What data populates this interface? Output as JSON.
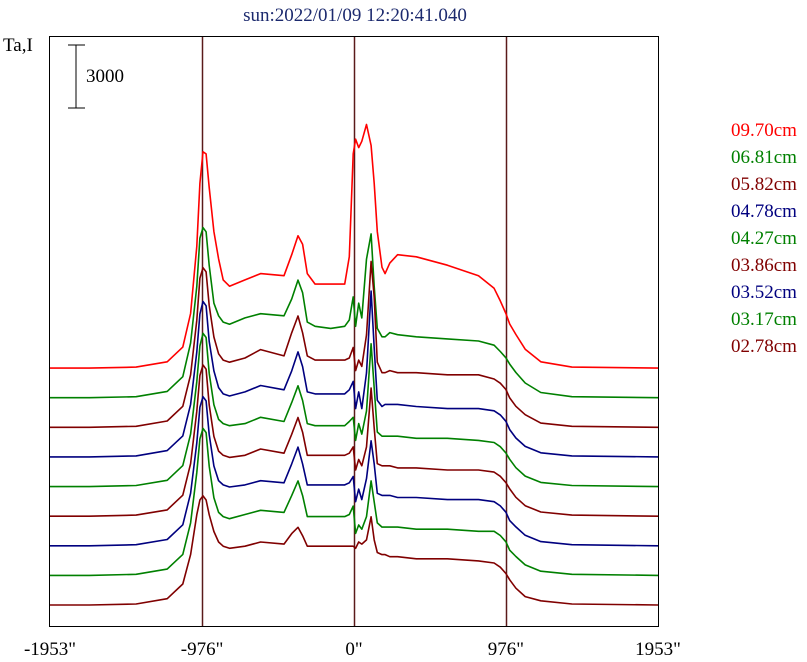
{
  "chart_data": {
    "type": "line",
    "title": "sun:2022/01/09 12:20:41.040",
    "ylabel": "Ta,I",
    "scale_bar_label": "3000",
    "scale_bar_value": 3000,
    "x_ticks": [
      {
        "value": -1953,
        "label": "-1953\""
      },
      {
        "value": -976,
        "label": "-976\""
      },
      {
        "value": 0,
        "label": "0\""
      },
      {
        "value": 976,
        "label": "976\""
      },
      {
        "value": 1953,
        "label": "1953\""
      }
    ],
    "xlim": [
      -1953,
      1953
    ],
    "vertical_lines": [
      -976,
      0,
      976
    ],
    "offset_step": 3000,
    "x": [
      -1953,
      -1700,
      -1400,
      -1200,
      -1100,
      -1050,
      -1010,
      -990,
      -970,
      -950,
      -930,
      -900,
      -870,
      -840,
      -800,
      -700,
      -600,
      -450,
      -400,
      -360,
      -330,
      -300,
      -250,
      -150,
      -60,
      -30,
      -5,
      10,
      30,
      50,
      80,
      110,
      130,
      150,
      180,
      200,
      230,
      280,
      400,
      600,
      800,
      900,
      940,
      976,
      1000,
      1040,
      1100,
      1200,
      1400,
      1953
    ],
    "series": [
      {
        "name": "09.70cm",
        "color": "#ff0000",
        "values": [
          0,
          0,
          50,
          300,
          1000,
          2600,
          5800,
          8800,
          10300,
          10200,
          8600,
          6500,
          5200,
          4200,
          3900,
          4200,
          4500,
          4400,
          5400,
          6300,
          5900,
          4500,
          4000,
          4000,
          4000,
          5300,
          10200,
          10900,
          10500,
          10800,
          11600,
          10600,
          8800,
          6500,
          4800,
          4500,
          5000,
          5400,
          5300,
          4900,
          4400,
          3800,
          3200,
          2600,
          2100,
          1600,
          900,
          300,
          50,
          0
        ]
      },
      {
        "name": "06.81cm",
        "color": "#008000",
        "values": [
          0,
          0,
          50,
          300,
          1000,
          2600,
          5300,
          7600,
          8100,
          7900,
          6300,
          4500,
          3900,
          3600,
          3500,
          3800,
          4000,
          3900,
          4700,
          5600,
          5000,
          3600,
          3400,
          3300,
          3400,
          3700,
          4800,
          3400,
          4500,
          3800,
          6600,
          7800,
          5300,
          3300,
          2900,
          2900,
          3100,
          3000,
          2900,
          2800,
          2700,
          2500,
          2200,
          1900,
          1600,
          1200,
          700,
          250,
          50,
          0
        ]
      },
      {
        "name": "05.82cm",
        "color": "#800000",
        "values": [
          0,
          0,
          50,
          300,
          1000,
          2500,
          5100,
          7100,
          7600,
          7400,
          5800,
          4300,
          3500,
          3200,
          3100,
          3300,
          3700,
          3400,
          4500,
          5300,
          4500,
          3400,
          3200,
          3200,
          3200,
          3300,
          3800,
          2700,
          3200,
          2900,
          4400,
          7900,
          6200,
          3100,
          2600,
          2600,
          2700,
          2600,
          2600,
          2500,
          2500,
          2300,
          2100,
          1800,
          1400,
          1000,
          600,
          200,
          50,
          0
        ]
      },
      {
        "name": "04.78cm",
        "color": "#00007f",
        "values": [
          0,
          0,
          50,
          300,
          1000,
          2500,
          5000,
          6800,
          7400,
          7200,
          5500,
          4100,
          3300,
          3000,
          2900,
          3100,
          3400,
          3200,
          4100,
          5000,
          4300,
          3100,
          3000,
          3000,
          3000,
          3200,
          3600,
          2300,
          3100,
          2300,
          4000,
          7900,
          5200,
          2700,
          2400,
          2500,
          2500,
          2500,
          2400,
          2300,
          2300,
          2200,
          2000,
          1700,
          1300,
          900,
          500,
          200,
          50,
          0
        ]
      },
      {
        "name": "04.27cm",
        "color": "#008000",
        "values": [
          0,
          0,
          50,
          300,
          1000,
          2500,
          5000,
          6700,
          7300,
          7100,
          5400,
          3900,
          3200,
          3000,
          2900,
          3000,
          3300,
          3100,
          4000,
          4800,
          4100,
          3000,
          2900,
          2900,
          2900,
          3100,
          3300,
          2200,
          3000,
          2500,
          3600,
          6800,
          4700,
          2600,
          2400,
          2400,
          2400,
          2400,
          2300,
          2300,
          2200,
          2100,
          1900,
          1600,
          1300,
          900,
          500,
          200,
          50,
          0
        ]
      },
      {
        "name": "03.86cm",
        "color": "#800000",
        "values": [
          0,
          0,
          50,
          300,
          1000,
          2500,
          5000,
          6700,
          7200,
          7000,
          5300,
          3800,
          3100,
          2900,
          2800,
          2900,
          3200,
          3000,
          3900,
          4700,
          4000,
          2900,
          2900,
          2900,
          2900,
          3000,
          3300,
          2200,
          2700,
          2400,
          3300,
          6100,
          4200,
          2500,
          2400,
          2400,
          2400,
          2300,
          2300,
          2200,
          2200,
          2100,
          1900,
          1600,
          1300,
          900,
          500,
          200,
          50,
          0
        ]
      },
      {
        "name": "03.52cm",
        "color": "#00007f",
        "values": [
          0,
          0,
          50,
          300,
          1000,
          2500,
          4900,
          6600,
          7100,
          6900,
          5300,
          3800,
          3100,
          2900,
          2800,
          2900,
          3100,
          3000,
          3900,
          4700,
          3900,
          2900,
          2900,
          2900,
          2900,
          3000,
          3300,
          2100,
          2700,
          2200,
          3200,
          5000,
          3900,
          2500,
          2400,
          2400,
          2400,
          2300,
          2300,
          2200,
          2200,
          2100,
          1900,
          1600,
          1200,
          900,
          500,
          200,
          50,
          0
        ]
      },
      {
        "name": "03.17cm",
        "color": "#008000",
        "values": [
          0,
          0,
          50,
          300,
          1000,
          2500,
          4900,
          6500,
          7000,
          6800,
          5200,
          3700,
          3000,
          2800,
          2700,
          2900,
          3100,
          3000,
          3800,
          4500,
          3800,
          2800,
          2800,
          2800,
          2800,
          2900,
          3300,
          2000,
          2400,
          2200,
          2800,
          4500,
          3500,
          2500,
          2300,
          2300,
          2300,
          2300,
          2200,
          2200,
          2100,
          2100,
          1900,
          1600,
          1200,
          900,
          500,
          200,
          50,
          0
        ]
      },
      {
        "name": "02.78cm",
        "color": "#800000",
        "values": [
          0,
          0,
          50,
          300,
          1000,
          2400,
          4300,
          5000,
          5200,
          5000,
          4300,
          3500,
          3000,
          2800,
          2700,
          2800,
          3000,
          2900,
          3400,
          3700,
          3300,
          2800,
          2800,
          2800,
          2800,
          2800,
          2800,
          2700,
          3000,
          2900,
          3100,
          4200,
          3100,
          2500,
          2400,
          2400,
          2300,
          2300,
          2200,
          2200,
          2100,
          2000,
          1800,
          1500,
          1200,
          800,
          400,
          200,
          50,
          0
        ]
      }
    ]
  }
}
